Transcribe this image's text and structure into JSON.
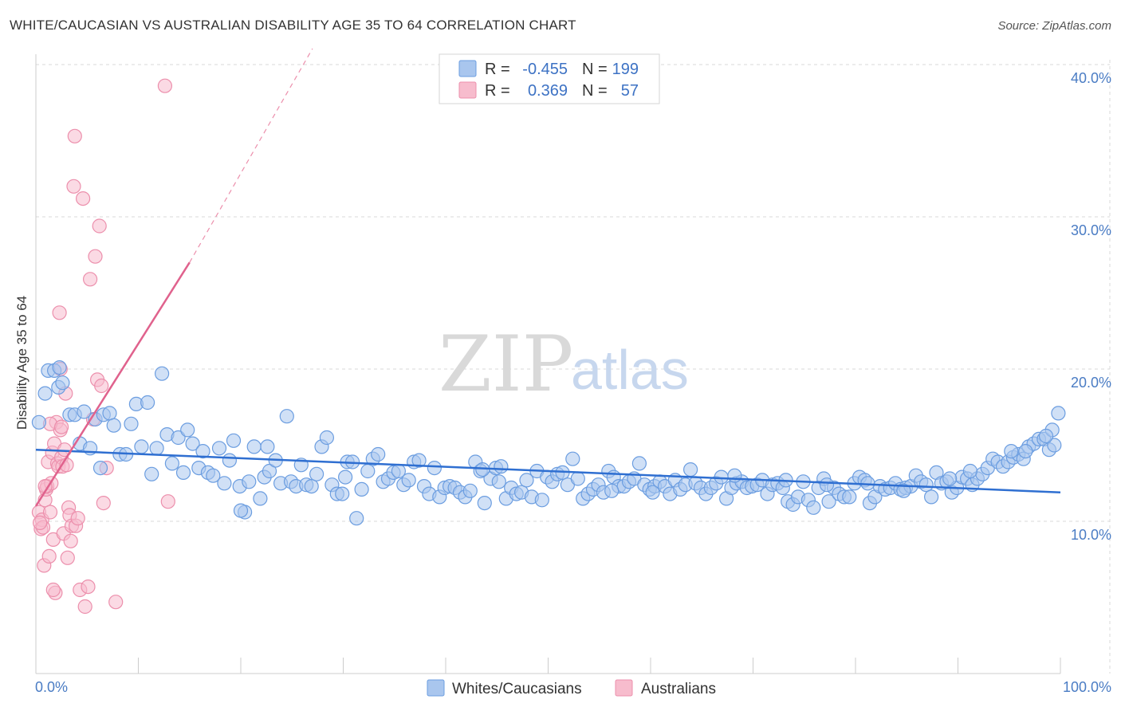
{
  "title": "WHITE/CAUCASIAN VS AUSTRALIAN DISABILITY AGE 35 TO 64 CORRELATION CHART",
  "source": "Source: ZipAtlas.com",
  "watermark": {
    "zip": "ZIP",
    "atlas": "atlas"
  },
  "colors": {
    "blue_fill": "#a9c6ee",
    "blue_stroke": "#6b9de0",
    "blue_line": "#2f6fd1",
    "pink_fill": "#f7bccd",
    "pink_stroke": "#ec8fac",
    "pink_line": "#e0628d",
    "grid": "#d8d8d8",
    "axis_text": "#4a7cc4"
  },
  "legend": {
    "row1": {
      "r_label": "R =",
      "r_value": "-0.455",
      "n_label": "N =",
      "n_value": "199"
    },
    "row2": {
      "r_label": "R =",
      "r_value": "0.369",
      "n_label": "N =",
      "n_value": "57"
    }
  },
  "bottom_legend": {
    "blue": "Whites/Caucasians",
    "pink": "Australians"
  },
  "chart_data": {
    "type": "scatter",
    "title": "WHITE/CAUCASIAN VS AUSTRALIAN DISABILITY AGE 35 TO 64 CORRELATION CHART",
    "xlabel": "",
    "ylabel": "Disability Age 35 to 64",
    "xlim": [
      0,
      100
    ],
    "ylim": [
      0,
      42
    ],
    "x_tick_labels": [
      "0.0%",
      "100.0%"
    ],
    "y_ticks": [
      10,
      20,
      30,
      40
    ],
    "y_tick_labels": [
      "10.0%",
      "20.0%",
      "30.0%",
      "40.0%"
    ],
    "grid": true,
    "series": [
      {
        "name": "Whites/Caucasians",
        "color": "blue",
        "trend": {
          "x0": 0,
          "y0": 14.7,
          "x1": 100,
          "y1": 11.9
        },
        "points": [
          [
            0.3,
            16.5
          ],
          [
            0.9,
            18.4
          ],
          [
            1.2,
            19.9
          ],
          [
            1.8,
            19.9
          ],
          [
            2.2,
            18.8
          ],
          [
            2.6,
            19.1
          ],
          [
            3.3,
            17.0
          ],
          [
            3.8,
            17.0
          ],
          [
            4.3,
            15.1
          ],
          [
            4.7,
            17.2
          ],
          [
            5.3,
            14.8
          ],
          [
            5.8,
            16.7
          ],
          [
            6.3,
            13.5
          ],
          [
            6.6,
            17.0
          ],
          [
            7.2,
            17.1
          ],
          [
            7.6,
            16.3
          ],
          [
            8.2,
            14.4
          ],
          [
            8.8,
            14.4
          ],
          [
            9.3,
            16.4
          ],
          [
            9.8,
            17.7
          ],
          [
            10.3,
            14.9
          ],
          [
            10.9,
            17.8
          ],
          [
            11.3,
            13.1
          ],
          [
            11.8,
            14.8
          ],
          [
            12.3,
            19.7
          ],
          [
            12.8,
            15.7
          ],
          [
            13.3,
            13.8
          ],
          [
            13.9,
            15.5
          ],
          [
            14.4,
            13.2
          ],
          [
            14.8,
            16.0
          ],
          [
            15.3,
            15.1
          ],
          [
            15.9,
            13.5
          ],
          [
            16.3,
            14.6
          ],
          [
            16.8,
            13.2
          ],
          [
            17.3,
            13.0
          ],
          [
            17.9,
            14.8
          ],
          [
            18.4,
            12.5
          ],
          [
            18.9,
            14.0
          ],
          [
            19.3,
            15.3
          ],
          [
            19.9,
            12.3
          ],
          [
            20.4,
            10.6
          ],
          [
            20.8,
            12.6
          ],
          [
            21.3,
            14.9
          ],
          [
            21.9,
            11.5
          ],
          [
            22.3,
            12.9
          ],
          [
            22.8,
            13.3
          ],
          [
            23.4,
            14.0
          ],
          [
            23.9,
            12.5
          ],
          [
            24.5,
            16.9
          ],
          [
            24.9,
            12.6
          ],
          [
            25.4,
            12.3
          ],
          [
            25.9,
            13.7
          ],
          [
            26.4,
            12.4
          ],
          [
            26.9,
            12.3
          ],
          [
            27.4,
            13.1
          ],
          [
            27.9,
            14.9
          ],
          [
            28.4,
            15.5
          ],
          [
            28.9,
            12.4
          ],
          [
            29.4,
            11.8
          ],
          [
            29.9,
            11.8
          ],
          [
            30.4,
            13.9
          ],
          [
            30.9,
            13.9
          ],
          [
            31.3,
            10.2
          ],
          [
            31.8,
            12.1
          ],
          [
            32.4,
            13.3
          ],
          [
            32.9,
            14.1
          ],
          [
            33.4,
            14.4
          ],
          [
            33.9,
            12.6
          ],
          [
            34.4,
            12.8
          ],
          [
            34.9,
            13.2
          ],
          [
            35.4,
            13.3
          ],
          [
            35.9,
            12.4
          ],
          [
            36.4,
            12.7
          ],
          [
            36.9,
            13.9
          ],
          [
            37.4,
            14.0
          ],
          [
            37.9,
            12.3
          ],
          [
            38.4,
            11.8
          ],
          [
            38.9,
            13.5
          ],
          [
            39.4,
            11.6
          ],
          [
            39.9,
            12.2
          ],
          [
            40.4,
            12.3
          ],
          [
            40.9,
            12.2
          ],
          [
            41.4,
            11.9
          ],
          [
            41.9,
            11.6
          ],
          [
            42.4,
            12.0
          ],
          [
            42.9,
            13.9
          ],
          [
            43.4,
            13.3
          ],
          [
            43.8,
            11.2
          ],
          [
            44.4,
            12.8
          ],
          [
            44.9,
            13.5
          ],
          [
            45.4,
            13.6
          ],
          [
            45.9,
            11.5
          ],
          [
            46.4,
            12.2
          ],
          [
            46.9,
            11.8
          ],
          [
            47.4,
            11.9
          ],
          [
            47.9,
            12.7
          ],
          [
            48.4,
            11.6
          ],
          [
            48.9,
            13.3
          ],
          [
            49.4,
            11.4
          ],
          [
            49.9,
            12.9
          ],
          [
            50.4,
            12.6
          ],
          [
            50.9,
            13.1
          ],
          [
            51.4,
            13.2
          ],
          [
            51.9,
            12.4
          ],
          [
            52.4,
            14.1
          ],
          [
            52.9,
            12.8
          ],
          [
            53.4,
            11.5
          ],
          [
            53.9,
            11.8
          ],
          [
            54.4,
            12.1
          ],
          [
            54.9,
            12.4
          ],
          [
            55.4,
            11.9
          ],
          [
            55.9,
            13.3
          ],
          [
            56.4,
            12.9
          ],
          [
            56.9,
            12.3
          ],
          [
            57.4,
            12.3
          ],
          [
            57.9,
            12.6
          ],
          [
            58.4,
            12.8
          ],
          [
            58.9,
            13.8
          ],
          [
            59.4,
            12.4
          ],
          [
            59.9,
            12.1
          ],
          [
            60.4,
            12.3
          ],
          [
            60.9,
            12.6
          ],
          [
            61.4,
            12.3
          ],
          [
            61.9,
            11.8
          ],
          [
            62.4,
            12.7
          ],
          [
            62.9,
            12.1
          ],
          [
            63.4,
            12.4
          ],
          [
            63.9,
            13.4
          ],
          [
            64.4,
            12.5
          ],
          [
            64.9,
            12.2
          ],
          [
            65.4,
            11.8
          ],
          [
            65.9,
            12.2
          ],
          [
            66.4,
            12.5
          ],
          [
            66.9,
            12.9
          ],
          [
            67.4,
            11.5
          ],
          [
            67.9,
            12.2
          ],
          [
            68.4,
            12.5
          ],
          [
            68.9,
            12.6
          ],
          [
            69.4,
            12.2
          ],
          [
            69.9,
            12.3
          ],
          [
            70.4,
            12.4
          ],
          [
            70.9,
            12.7
          ],
          [
            71.4,
            11.8
          ],
          [
            71.9,
            12.4
          ],
          [
            72.4,
            12.5
          ],
          [
            72.9,
            12.2
          ],
          [
            73.4,
            11.3
          ],
          [
            73.9,
            11.1
          ],
          [
            74.4,
            11.6
          ],
          [
            74.9,
            12.6
          ],
          [
            75.4,
            11.4
          ],
          [
            75.9,
            10.9
          ],
          [
            76.4,
            12.2
          ],
          [
            76.9,
            12.8
          ],
          [
            77.4,
            11.3
          ],
          [
            77.9,
            12.2
          ],
          [
            78.4,
            11.8
          ],
          [
            78.9,
            11.6
          ],
          [
            79.4,
            11.6
          ],
          [
            79.9,
            12.5
          ],
          [
            80.4,
            12.9
          ],
          [
            80.9,
            12.7
          ],
          [
            81.4,
            11.2
          ],
          [
            81.9,
            11.6
          ],
          [
            82.4,
            12.3
          ],
          [
            82.9,
            12.1
          ],
          [
            83.4,
            12.2
          ],
          [
            83.9,
            12.5
          ],
          [
            84.4,
            12.1
          ],
          [
            84.9,
            12.2
          ],
          [
            85.4,
            12.3
          ],
          [
            85.9,
            13.0
          ],
          [
            86.4,
            12.6
          ],
          [
            86.9,
            12.4
          ],
          [
            87.4,
            11.6
          ],
          [
            87.9,
            13.2
          ],
          [
            88.4,
            12.5
          ],
          [
            88.9,
            12.6
          ],
          [
            89.4,
            11.9
          ],
          [
            89.9,
            12.2
          ],
          [
            90.4,
            12.9
          ],
          [
            90.9,
            12.8
          ],
          [
            91.4,
            12.4
          ],
          [
            91.9,
            12.8
          ],
          [
            92.4,
            13.1
          ],
          [
            92.9,
            13.5
          ],
          [
            93.4,
            14.1
          ],
          [
            93.9,
            13.9
          ],
          [
            94.4,
            13.6
          ],
          [
            94.9,
            13.9
          ],
          [
            95.4,
            14.2
          ],
          [
            95.9,
            14.4
          ],
          [
            96.4,
            14.1
          ],
          [
            96.9,
            14.9
          ],
          [
            97.4,
            15.1
          ],
          [
            97.9,
            15.4
          ],
          [
            98.4,
            15.4
          ],
          [
            98.9,
            14.7
          ],
          [
            99.4,
            15.0
          ],
          [
            99.8,
            17.1
          ],
          [
            99.2,
            16.0
          ],
          [
            43.6,
            13.4
          ],
          [
            22.6,
            14.9
          ],
          [
            56.2,
            12.0
          ],
          [
            68.2,
            13.0
          ],
          [
            81.2,
            12.5
          ],
          [
            84.7,
            12.0
          ],
          [
            89.2,
            12.8
          ],
          [
            91.2,
            13.3
          ],
          [
            73.2,
            12.7
          ],
          [
            2.3,
            20.1
          ],
          [
            30.2,
            12.9
          ],
          [
            45.2,
            12.6
          ],
          [
            60.2,
            11.9
          ],
          [
            77.2,
            12.4
          ],
          [
            95.2,
            14.6
          ],
          [
            96.6,
            14.6
          ],
          [
            98.6,
            15.6
          ],
          [
            20.0,
            10.7
          ]
        ]
      },
      {
        "name": "Australians",
        "color": "pink",
        "trend": {
          "x0": 0,
          "y0": 11.0,
          "x1": 15,
          "y1": 27.0,
          "dash_x1": 27,
          "dash_y1": 40.0
        },
        "points": [
          [
            0.3,
            10.6
          ],
          [
            0.5,
            9.5
          ],
          [
            0.6,
            10.1
          ],
          [
            0.7,
            9.6
          ],
          [
            0.8,
            7.1
          ],
          [
            0.9,
            11.4
          ],
          [
            1.0,
            12.1
          ],
          [
            1.1,
            12.3
          ],
          [
            1.2,
            13.9
          ],
          [
            1.3,
            7.7
          ],
          [
            1.4,
            10.6
          ],
          [
            1.5,
            12.5
          ],
          [
            1.6,
            14.5
          ],
          [
            1.7,
            8.8
          ],
          [
            1.8,
            15.1
          ],
          [
            1.9,
            5.3
          ],
          [
            2.0,
            16.5
          ],
          [
            2.1,
            13.8
          ],
          [
            2.2,
            13.6
          ],
          [
            2.3,
            23.7
          ],
          [
            2.4,
            16.0
          ],
          [
            2.5,
            14.2
          ],
          [
            2.6,
            13.6
          ],
          [
            2.7,
            9.2
          ],
          [
            2.8,
            14.7
          ],
          [
            2.9,
            18.4
          ],
          [
            3.0,
            13.7
          ],
          [
            3.1,
            7.6
          ],
          [
            3.2,
            10.9
          ],
          [
            3.3,
            10.4
          ],
          [
            3.4,
            8.7
          ],
          [
            3.5,
            9.7
          ],
          [
            3.7,
            32.0
          ],
          [
            3.8,
            35.3
          ],
          [
            3.9,
            9.7
          ],
          [
            4.1,
            10.2
          ],
          [
            4.3,
            5.5
          ],
          [
            4.6,
            31.2
          ],
          [
            4.8,
            4.4
          ],
          [
            5.1,
            5.7
          ],
          [
            5.3,
            25.9
          ],
          [
            5.6,
            16.7
          ],
          [
            5.8,
            27.4
          ],
          [
            6.0,
            19.3
          ],
          [
            6.2,
            29.4
          ],
          [
            6.4,
            18.9
          ],
          [
            6.6,
            11.2
          ],
          [
            6.9,
            13.5
          ],
          [
            7.8,
            4.7
          ],
          [
            12.6,
            38.6
          ],
          [
            12.9,
            11.3
          ],
          [
            0.4,
            9.9
          ],
          [
            1.4,
            16.4
          ],
          [
            2.4,
            20.0
          ],
          [
            0.9,
            12.3
          ],
          [
            1.7,
            5.5
          ],
          [
            2.5,
            16.2
          ]
        ]
      }
    ]
  }
}
